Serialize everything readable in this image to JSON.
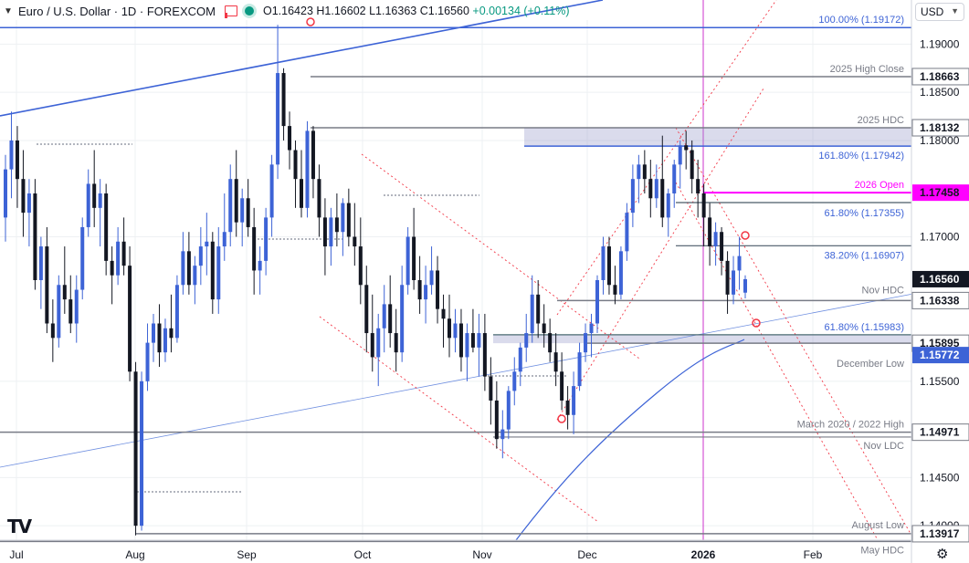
{
  "header": {
    "title": "Euro / U.S. Dollar · 1D · FOREXCOM",
    "open": "O1.16423",
    "high": "H1.16602",
    "low": "L1.16363",
    "close": "C1.16560",
    "change": "+0.00134 (+0.11%)"
  },
  "currency_selector": "USD",
  "colors": {
    "up": "#3d63d6",
    "down": "#131722",
    "price_line": "#131722",
    "accent": "#3d63d6",
    "open_line": "#ff00ff"
  },
  "chart_data": {
    "type": "candlestick",
    "title": "Euro / U.S. Dollar, 1D, FOREXCOM",
    "ylim": [
      1.1385,
      1.1925
    ],
    "y_ticks": [
      "1.19000",
      "1.18500",
      "1.18000",
      "1.17000",
      "1.15500",
      "1.14500",
      "1.14000"
    ],
    "x_ticks": [
      "Jul",
      "Aug",
      "Sep",
      "Oct",
      "Nov",
      "Dec",
      "2026",
      "Feb"
    ],
    "price_labels": [
      {
        "value": 1.18663,
        "text": "1.18663"
      },
      {
        "value": 1.18132,
        "text": "1.18132"
      },
      {
        "value": 1.17458,
        "text": "1.17458"
      },
      {
        "value": 1.1656,
        "text": "1.16560"
      },
      {
        "value": 1.16338,
        "text": "1.16338"
      },
      {
        "value": 1.15895,
        "text": "1.15895"
      },
      {
        "value": 1.15772,
        "text": "1.15772"
      },
      {
        "value": 1.14971,
        "text": "1.14971"
      },
      {
        "value": 1.13917,
        "text": "1.13917"
      }
    ],
    "levels": [
      {
        "value": 1.19172,
        "label": "100.00% (1.19172)"
      },
      {
        "value": 1.18663,
        "label": "2025 High Close"
      },
      {
        "value": 1.18132,
        "label": "2025 HDC"
      },
      {
        "value": 1.17942,
        "label": "161.80% (1.17942)"
      },
      {
        "value": 1.17458,
        "label": "2026 Open"
      },
      {
        "value": 1.17355,
        "label": "61.80% (1.17355)"
      },
      {
        "value": 1.16907,
        "label": "38.20% (1.16907)"
      },
      {
        "value": 1.16338,
        "label": "Nov HDC"
      },
      {
        "value": 1.15983,
        "label": "61.80% (1.15983)"
      },
      {
        "value": 1.15772,
        "label": "December Low"
      },
      {
        "value": 1.14971,
        "label": "March 2020 / 2022 High"
      },
      {
        "value": 1.14921,
        "label": "Nov LDC"
      },
      {
        "value": 1.13917,
        "label": "August Low"
      },
      {
        "value": 1.13837,
        "label": "May HDC"
      }
    ],
    "candles_ohlc": [
      [
        1.172,
        1.1785,
        1.1695,
        1.177
      ],
      [
        1.177,
        1.183,
        1.174,
        1.18
      ],
      [
        1.18,
        1.1815,
        1.173,
        1.176
      ],
      [
        1.176,
        1.179,
        1.17,
        1.1725
      ],
      [
        1.1725,
        1.176,
        1.169,
        1.1745
      ],
      [
        1.1745,
        1.176,
        1.1645,
        1.1655
      ],
      [
        1.1655,
        1.17,
        1.1625,
        1.169
      ],
      [
        1.169,
        1.171,
        1.16,
        1.161
      ],
      [
        1.161,
        1.1635,
        1.157,
        1.1595
      ],
      [
        1.1595,
        1.166,
        1.1585,
        1.165
      ],
      [
        1.165,
        1.169,
        1.162,
        1.1635
      ],
      [
        1.1635,
        1.166,
        1.16,
        1.161
      ],
      [
        1.161,
        1.166,
        1.159,
        1.1645
      ],
      [
        1.1645,
        1.172,
        1.1635,
        1.171
      ],
      [
        1.171,
        1.177,
        1.17,
        1.1755
      ],
      [
        1.1755,
        1.179,
        1.171,
        1.173
      ],
      [
        1.173,
        1.176,
        1.169,
        1.1745
      ],
      [
        1.1745,
        1.1755,
        1.166,
        1.1675
      ],
      [
        1.1675,
        1.169,
        1.163,
        1.166
      ],
      [
        1.166,
        1.171,
        1.165,
        1.1695
      ],
      [
        1.1695,
        1.172,
        1.166,
        1.167
      ],
      [
        1.167,
        1.169,
        1.155,
        1.156
      ],
      [
        1.156,
        1.157,
        1.139,
        1.14
      ],
      [
        1.14,
        1.156,
        1.1395,
        1.155
      ],
      [
        1.155,
        1.161,
        1.154,
        1.159
      ],
      [
        1.159,
        1.162,
        1.157,
        1.161
      ],
      [
        1.161,
        1.163,
        1.1565,
        1.158
      ],
      [
        1.158,
        1.1615,
        1.157,
        1.1605
      ],
      [
        1.1605,
        1.164,
        1.158,
        1.1595
      ],
      [
        1.1595,
        1.166,
        1.159,
        1.165
      ],
      [
        1.165,
        1.1705,
        1.164,
        1.1685
      ],
      [
        1.1685,
        1.1705,
        1.164,
        1.165
      ],
      [
        1.165,
        1.168,
        1.163,
        1.167
      ],
      [
        1.167,
        1.171,
        1.165,
        1.169
      ],
      [
        1.169,
        1.1725,
        1.166,
        1.1695
      ],
      [
        1.1695,
        1.1705,
        1.162,
        1.1635
      ],
      [
        1.1635,
        1.171,
        1.162,
        1.169
      ],
      [
        1.169,
        1.1745,
        1.1675,
        1.1705
      ],
      [
        1.1705,
        1.1775,
        1.169,
        1.176
      ],
      [
        1.176,
        1.179,
        1.17,
        1.1715
      ],
      [
        1.1715,
        1.175,
        1.169,
        1.174
      ],
      [
        1.174,
        1.176,
        1.17,
        1.171
      ],
      [
        1.171,
        1.173,
        1.164,
        1.1665
      ],
      [
        1.1665,
        1.169,
        1.164,
        1.1675
      ],
      [
        1.1675,
        1.173,
        1.166,
        1.172
      ],
      [
        1.172,
        1.1785,
        1.17,
        1.1775
      ],
      [
        1.1775,
        1.192,
        1.176,
        1.187
      ],
      [
        1.187,
        1.1875,
        1.18,
        1.1815
      ],
      [
        1.1815,
        1.183,
        1.177,
        1.179
      ],
      [
        1.179,
        1.18,
        1.173,
        1.176
      ],
      [
        1.176,
        1.179,
        1.172,
        1.173
      ],
      [
        1.173,
        1.182,
        1.172,
        1.181
      ],
      [
        1.181,
        1.1815,
        1.174,
        1.176
      ],
      [
        1.176,
        1.1775,
        1.17,
        1.172
      ],
      [
        1.172,
        1.174,
        1.166,
        1.169
      ],
      [
        1.169,
        1.173,
        1.167,
        1.172
      ],
      [
        1.172,
        1.1745,
        1.169,
        1.1705
      ],
      [
        1.1705,
        1.174,
        1.168,
        1.1735
      ],
      [
        1.1735,
        1.175,
        1.169,
        1.17
      ],
      [
        1.17,
        1.1735,
        1.167,
        1.169
      ],
      [
        1.169,
        1.172,
        1.163,
        1.165
      ],
      [
        1.165,
        1.167,
        1.158,
        1.16
      ],
      [
        1.16,
        1.164,
        1.156,
        1.1575
      ],
      [
        1.1575,
        1.162,
        1.1545,
        1.1605
      ],
      [
        1.1605,
        1.165,
        1.158,
        1.163
      ],
      [
        1.163,
        1.166,
        1.1585,
        1.16
      ],
      [
        1.16,
        1.1625,
        1.156,
        1.158
      ],
      [
        1.158,
        1.167,
        1.157,
        1.165
      ],
      [
        1.165,
        1.171,
        1.164,
        1.17
      ],
      [
        1.17,
        1.173,
        1.1645,
        1.1655
      ],
      [
        1.1655,
        1.168,
        1.162,
        1.1635
      ],
      [
        1.1635,
        1.167,
        1.161,
        1.165
      ],
      [
        1.165,
        1.169,
        1.164,
        1.1665
      ],
      [
        1.1665,
        1.168,
        1.161,
        1.1625
      ],
      [
        1.1625,
        1.164,
        1.1585,
        1.1615
      ],
      [
        1.1615,
        1.164,
        1.1575,
        1.1595
      ],
      [
        1.1595,
        1.1625,
        1.158,
        1.161
      ],
      [
        1.161,
        1.1625,
        1.156,
        1.1575
      ],
      [
        1.1575,
        1.161,
        1.155,
        1.16
      ],
      [
        1.16,
        1.1625,
        1.158,
        1.1585
      ],
      [
        1.1585,
        1.162,
        1.1555,
        1.16
      ],
      [
        1.16,
        1.162,
        1.154,
        1.1555
      ],
      [
        1.1555,
        1.1575,
        1.1505,
        1.153
      ],
      [
        1.153,
        1.155,
        1.148,
        1.149
      ],
      [
        1.149,
        1.152,
        1.147,
        1.15
      ],
      [
        1.15,
        1.1545,
        1.149,
        1.154
      ],
      [
        1.154,
        1.1575,
        1.1525,
        1.156
      ],
      [
        1.156,
        1.159,
        1.1545,
        1.1585
      ],
      [
        1.1585,
        1.162,
        1.157,
        1.16
      ],
      [
        1.16,
        1.166,
        1.159,
        1.164
      ],
      [
        1.164,
        1.1655,
        1.1595,
        1.161
      ],
      [
        1.161,
        1.163,
        1.1585,
        1.16
      ],
      [
        1.16,
        1.1615,
        1.157,
        1.158
      ],
      [
        1.158,
        1.16,
        1.1545,
        1.156
      ],
      [
        1.156,
        1.158,
        1.152,
        1.153
      ],
      [
        1.153,
        1.1545,
        1.15,
        1.1515
      ],
      [
        1.1515,
        1.156,
        1.1495,
        1.1545
      ],
      [
        1.1545,
        1.159,
        1.154,
        1.158
      ],
      [
        1.158,
        1.161,
        1.157,
        1.16
      ],
      [
        1.16,
        1.162,
        1.1575,
        1.161
      ],
      [
        1.161,
        1.166,
        1.16,
        1.1655
      ],
      [
        1.1655,
        1.17,
        1.164,
        1.169
      ],
      [
        1.169,
        1.17,
        1.164,
        1.165
      ],
      [
        1.165,
        1.167,
        1.163,
        1.164
      ],
      [
        1.164,
        1.169,
        1.1635,
        1.1685
      ],
      [
        1.1685,
        1.1735,
        1.1675,
        1.1725
      ],
      [
        1.1725,
        1.1775,
        1.171,
        1.176
      ],
      [
        1.176,
        1.1785,
        1.1735,
        1.1775
      ],
      [
        1.1775,
        1.179,
        1.1745,
        1.176
      ],
      [
        1.176,
        1.178,
        1.172,
        1.174
      ],
      [
        1.174,
        1.1775,
        1.173,
        1.176
      ],
      [
        1.176,
        1.1805,
        1.171,
        1.172
      ],
      [
        1.172,
        1.175,
        1.17,
        1.1745
      ],
      [
        1.1745,
        1.178,
        1.173,
        1.1775
      ],
      [
        1.1775,
        1.18,
        1.175,
        1.1795
      ],
      [
        1.1795,
        1.181,
        1.177,
        1.179
      ],
      [
        1.179,
        1.18,
        1.1745,
        1.176
      ],
      [
        1.176,
        1.178,
        1.172,
        1.1745
      ],
      [
        1.1745,
        1.1755,
        1.169,
        1.172
      ],
      [
        1.172,
        1.1735,
        1.167,
        1.169
      ],
      [
        1.169,
        1.1715,
        1.167,
        1.1705
      ],
      [
        1.1705,
        1.171,
        1.166,
        1.1675
      ],
      [
        1.1675,
        1.1685,
        1.162,
        1.164
      ],
      [
        1.164,
        1.168,
        1.163,
        1.1665
      ],
      [
        1.1665,
        1.17,
        1.1645,
        1.168
      ],
      [
        1.1642,
        1.166,
        1.1636,
        1.1656
      ]
    ]
  },
  "logo": "TV"
}
